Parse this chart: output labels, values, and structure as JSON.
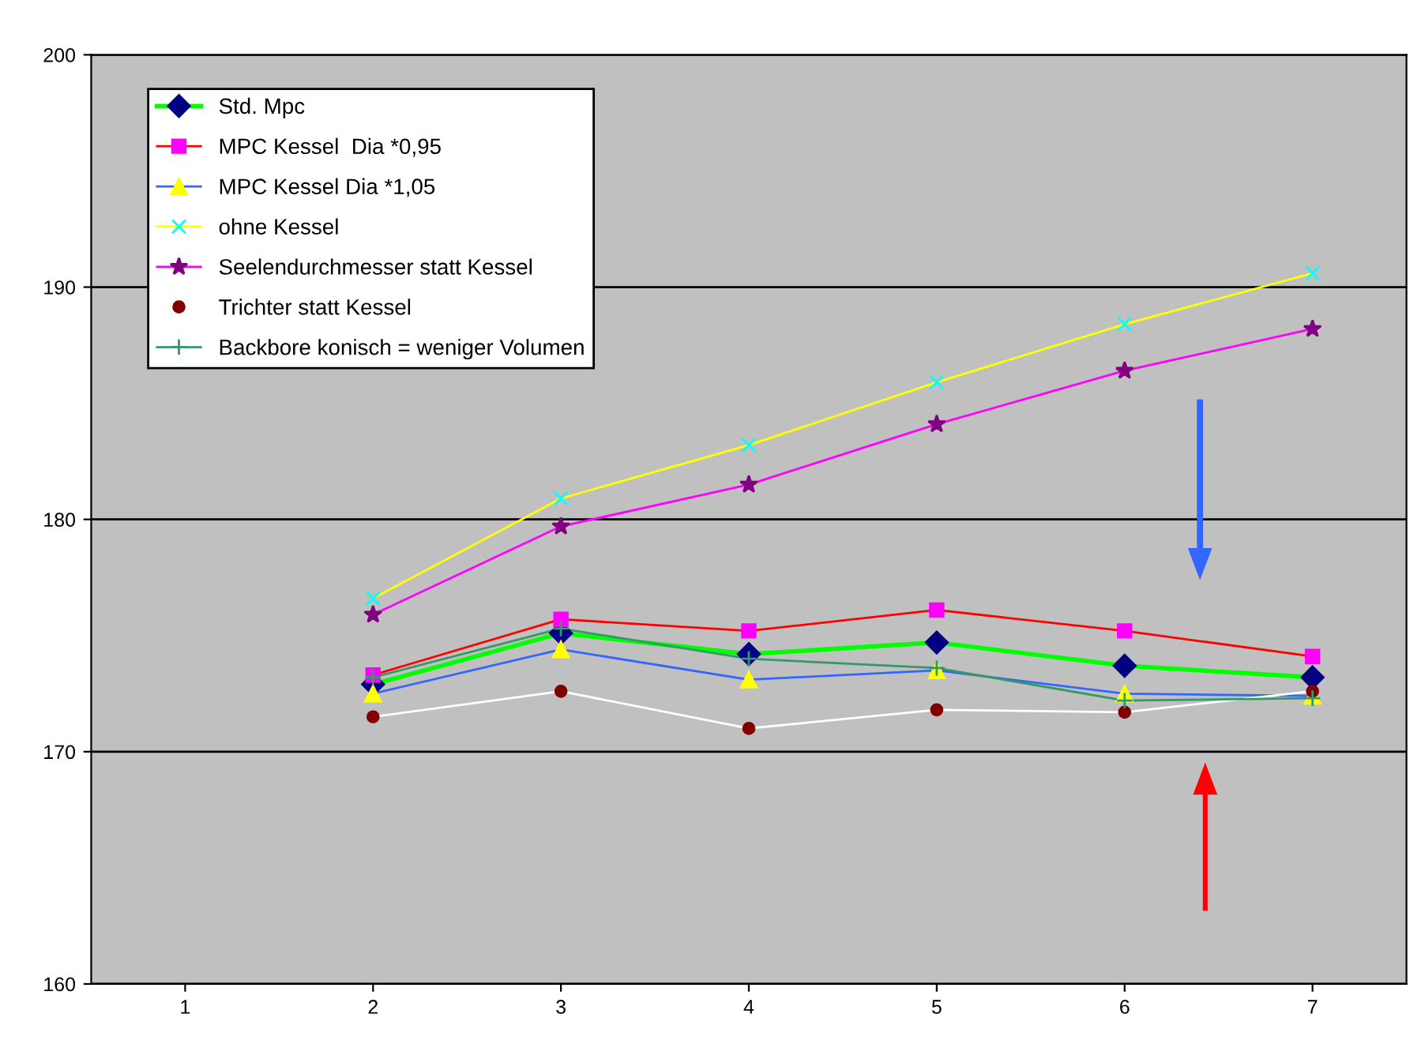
{
  "chart_data": {
    "type": "line",
    "categories": [
      "1",
      "2",
      "3",
      "4",
      "5",
      "6",
      "7"
    ],
    "series": [
      {
        "name": "Std. Mpc",
        "color": "#00ff00",
        "marker": "diamond",
        "colors": [
          null,
          "#000080",
          "#000080",
          "#000080",
          "#000080",
          "#000080",
          "#000080"
        ],
        "values": [
          null,
          172.9,
          175.1,
          174.2,
          174.7,
          173.7,
          173.2
        ]
      },
      {
        "name": "MPC Kessel  Dia *0,95",
        "color": "#ff0000",
        "marker": "square",
        "colors": [
          null,
          "#ff00ff",
          "#ff00ff",
          "#ff00ff",
          "#ff00ff",
          "#ff00ff",
          "#ff00ff"
        ],
        "values": [
          null,
          173.3,
          175.7,
          175.2,
          176.1,
          175.2,
          174.1
        ]
      },
      {
        "name": "MPC Kessel Dia *1,05",
        "color": "#3366ff",
        "marker": "triangle",
        "colors": [
          null,
          "#ffff00",
          "#ffff00",
          "#ffff00",
          "#ffff00",
          "#ffff00",
          "#ffff00"
        ],
        "values": [
          null,
          172.5,
          174.4,
          173.1,
          173.5,
          172.5,
          172.4
        ]
      },
      {
        "name": "ohne Kessel",
        "color": "#ffff00",
        "marker": "cross",
        "colors": [
          null,
          "#00ffff",
          "#00ffff",
          "#00ffff",
          "#00ffff",
          "#00ffff",
          "#00ffff"
        ],
        "values": [
          null,
          176.6,
          180.9,
          183.2,
          185.9,
          188.4,
          190.6
        ]
      },
      {
        "name": "Seelendurchmesser statt Kessel",
        "color": "#ff00ff",
        "marker": "star",
        "colors": [
          null,
          "#800080",
          "#800080",
          "#800080",
          "#800080",
          "#800080",
          "#800080"
        ],
        "values": [
          null,
          175.9,
          179.7,
          181.5,
          184.1,
          186.4,
          188.2
        ]
      },
      {
        "name": "Trichter statt Kessel",
        "color": "#ffffff",
        "marker": "circle",
        "colors": [
          null,
          "#800000",
          "#800000",
          "#800000",
          "#800000",
          "#800000",
          "#800000"
        ],
        "values": [
          null,
          171.5,
          172.6,
          171.0,
          171.8,
          171.7,
          172.6
        ]
      },
      {
        "name": "Backbore konisch = weniger Volumen",
        "color": "#339966",
        "marker": "plus",
        "values": [
          null,
          173.2,
          175.3,
          174.0,
          173.6,
          172.2,
          172.3
        ]
      }
    ],
    "ylim": [
      160,
      200
    ],
    "yticks": [
      160,
      170,
      180,
      190,
      200
    ],
    "grid": "y",
    "legend": "top left"
  }
}
